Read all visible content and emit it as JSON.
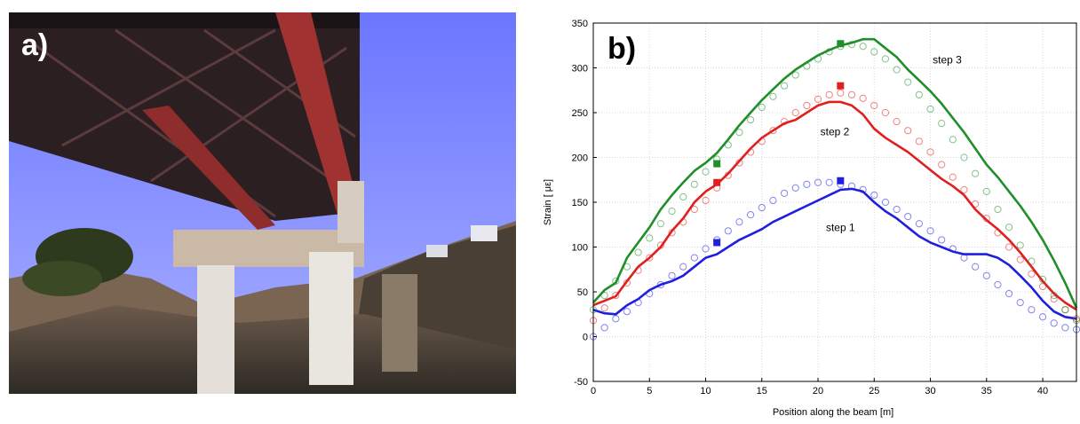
{
  "panel_a": {
    "label": "a)"
  },
  "panel_b": {
    "label": "b)"
  },
  "chart_data": {
    "type": "line",
    "title": "",
    "xlabel": "Position along the beam  [m]",
    "ylabel": "Strain    [ με]",
    "xlim": [
      0,
      43
    ],
    "ylim": [
      -50,
      350
    ],
    "xticks": [
      0,
      5,
      10,
      15,
      20,
      25,
      30,
      35,
      40
    ],
    "yticks": [
      -50,
      0,
      50,
      100,
      150,
      200,
      250,
      300,
      350
    ],
    "grid": true,
    "annotations": [
      {
        "text": "step 3",
        "x": 31.5,
        "y": 305
      },
      {
        "text": "step 2",
        "x": 21.5,
        "y": 225
      },
      {
        "text": "step 1",
        "x": 22,
        "y": 118
      }
    ],
    "series": [
      {
        "name": "step 1",
        "color": "#1f1fe0",
        "line": {
          "x": [
            0,
            1,
            2,
            3,
            4,
            5,
            6,
            7,
            8,
            9,
            10,
            11,
            12,
            13,
            14,
            15,
            16,
            17,
            18,
            19,
            20,
            21,
            22,
            23,
            24,
            25,
            26,
            27,
            28,
            29,
            30,
            31,
            32,
            33,
            34,
            35,
            36,
            37,
            38,
            39,
            40,
            41,
            42,
            43
          ],
          "y": [
            30,
            26,
            25,
            35,
            42,
            52,
            58,
            62,
            68,
            78,
            88,
            92,
            100,
            108,
            114,
            120,
            128,
            134,
            140,
            146,
            152,
            158,
            164,
            165,
            162,
            150,
            140,
            132,
            122,
            112,
            105,
            100,
            95,
            92,
            92,
            92,
            88,
            80,
            68,
            55,
            40,
            28,
            22,
            20
          ]
        },
        "markers": {
          "x": [
            0,
            1,
            2,
            3,
            4,
            5,
            6,
            7,
            8,
            9,
            10,
            11,
            12,
            13,
            14,
            15,
            16,
            17,
            18,
            19,
            20,
            21,
            22,
            23,
            24,
            25,
            26,
            27,
            28,
            29,
            30,
            31,
            32,
            33,
            34,
            35,
            36,
            37,
            38,
            39,
            40,
            41,
            42,
            43
          ],
          "y": [
            0,
            10,
            20,
            28,
            38,
            48,
            58,
            68,
            78,
            88,
            98,
            108,
            118,
            128,
            136,
            144,
            152,
            160,
            166,
            170,
            172,
            172,
            170,
            168,
            164,
            158,
            150,
            142,
            134,
            126,
            118,
            108,
            98,
            88,
            78,
            68,
            58,
            48,
            38,
            30,
            22,
            15,
            10,
            8
          ]
        },
        "points": [
          {
            "x": 11,
            "y": 105
          },
          {
            "x": 22,
            "y": 174
          }
        ]
      },
      {
        "name": "step 2",
        "color": "#e01f1f",
        "line": {
          "x": [
            0,
            1,
            2,
            3,
            4,
            5,
            6,
            7,
            8,
            9,
            10,
            11,
            12,
            13,
            14,
            15,
            16,
            17,
            18,
            19,
            20,
            21,
            22,
            23,
            24,
            25,
            26,
            27,
            28,
            29,
            30,
            31,
            32,
            33,
            34,
            35,
            36,
            37,
            38,
            39,
            40,
            41,
            42,
            43
          ],
          "y": [
            35,
            40,
            45,
            62,
            78,
            88,
            100,
            118,
            132,
            150,
            162,
            170,
            182,
            196,
            210,
            222,
            230,
            238,
            242,
            250,
            258,
            262,
            262,
            258,
            248,
            232,
            222,
            214,
            206,
            196,
            186,
            176,
            168,
            158,
            142,
            130,
            120,
            108,
            94,
            78,
            62,
            48,
            38,
            30
          ]
        },
        "markers": {
          "x": [
            0,
            1,
            2,
            3,
            4,
            5,
            6,
            7,
            8,
            9,
            10,
            11,
            12,
            13,
            14,
            15,
            16,
            17,
            18,
            19,
            20,
            21,
            22,
            23,
            24,
            25,
            26,
            27,
            28,
            29,
            30,
            31,
            32,
            33,
            34,
            35,
            36,
            37,
            38,
            39,
            40,
            41,
            42,
            43
          ],
          "y": [
            18,
            32,
            46,
            60,
            74,
            88,
            102,
            116,
            128,
            142,
            152,
            166,
            180,
            194,
            206,
            218,
            230,
            240,
            250,
            258,
            265,
            270,
            272,
            270,
            266,
            258,
            250,
            240,
            230,
            218,
            206,
            192,
            178,
            164,
            148,
            132,
            116,
            100,
            86,
            70,
            56,
            42,
            30,
            20
          ]
        },
        "points": [
          {
            "x": 11,
            "y": 172
          },
          {
            "x": 22,
            "y": 280
          }
        ]
      },
      {
        "name": "step 3",
        "color": "#1f8f2a",
        "line": {
          "x": [
            0,
            1,
            2,
            3,
            4,
            5,
            6,
            7,
            8,
            9,
            10,
            11,
            12,
            13,
            14,
            15,
            16,
            17,
            18,
            19,
            20,
            21,
            22,
            23,
            24,
            25,
            26,
            27,
            28,
            29,
            30,
            31,
            32,
            33,
            34,
            35,
            36,
            37,
            38,
            39,
            40,
            41,
            42,
            43
          ],
          "y": [
            38,
            52,
            60,
            88,
            105,
            122,
            142,
            158,
            172,
            185,
            194,
            205,
            220,
            236,
            250,
            264,
            276,
            288,
            298,
            306,
            314,
            320,
            325,
            328,
            332,
            332,
            322,
            312,
            298,
            286,
            274,
            260,
            244,
            228,
            210,
            192,
            178,
            162,
            146,
            128,
            108,
            85,
            60,
            32
          ]
        },
        "markers": {
          "x": [
            0,
            1,
            2,
            3,
            4,
            5,
            6,
            7,
            8,
            9,
            10,
            11,
            12,
            13,
            14,
            15,
            16,
            17,
            18,
            19,
            20,
            21,
            22,
            23,
            24,
            25,
            26,
            27,
            28,
            29,
            30,
            31,
            32,
            33,
            34,
            35,
            36,
            37,
            38,
            39,
            40,
            41,
            42,
            43
          ],
          "y": [
            30,
            46,
            62,
            78,
            94,
            110,
            126,
            140,
            156,
            170,
            184,
            198,
            214,
            228,
            242,
            256,
            268,
            280,
            292,
            302,
            310,
            318,
            324,
            326,
            324,
            318,
            310,
            298,
            284,
            270,
            254,
            238,
            220,
            200,
            182,
            162,
            142,
            122,
            102,
            84,
            64,
            46,
            30,
            18
          ]
        },
        "points": [
          {
            "x": 11,
            "y": 193
          },
          {
            "x": 22,
            "y": 327
          }
        ]
      }
    ]
  }
}
